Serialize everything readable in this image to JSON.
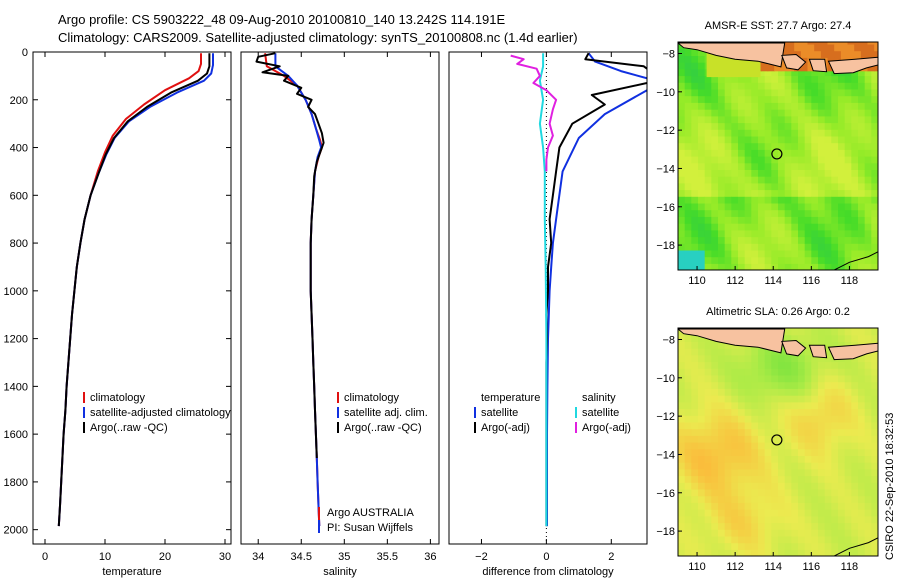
{
  "header": {
    "line1": "Argo profile: CS 5903222_48 09-Aug-2010 20100810_140 13.242S 114.191E",
    "line2": "Climatology: CARS2009. Satellite-adjusted climatology: synTS_20100808.nc (1.4d earlier)"
  },
  "stamp": "CSIRO 22-Sep-2010 18:32:53",
  "colors": {
    "clim": "#e01010",
    "sat": "#1030e0",
    "argo": "#000000",
    "sat_sal": "#20d8e0",
    "argo_sal": "#e020e0"
  },
  "chart_data": [
    {
      "type": "line",
      "id": "temperature",
      "xlabel": "temperature",
      "ylabel": "",
      "xlim": [
        -2,
        31
      ],
      "ylim": [
        2060,
        0
      ],
      "xticks": [
        0,
        10,
        20,
        30
      ],
      "yticks": [
        0,
        200,
        400,
        600,
        800,
        1000,
        1200,
        1400,
        1600,
        1800,
        2000
      ],
      "series": [
        {
          "name": "climatology",
          "color": "clim",
          "points": [
            [
              26.0,
              5
            ],
            [
              26.0,
              50
            ],
            [
              25.6,
              80
            ],
            [
              24.0,
              110
            ],
            [
              20.0,
              160
            ],
            [
              16.5,
              220
            ],
            [
              13.5,
              280
            ],
            [
              11.3,
              350
            ],
            [
              10.0,
              420
            ],
            [
              8.8,
              500
            ],
            [
              7.6,
              600
            ],
            [
              6.6,
              700
            ],
            [
              5.9,
              800
            ],
            [
              5.3,
              900
            ],
            [
              4.9,
              1000
            ],
            [
              4.5,
              1100
            ],
            [
              4.2,
              1200
            ],
            [
              3.9,
              1300
            ],
            [
              3.6,
              1400
            ],
            [
              3.4,
              1500
            ],
            [
              3.1,
              1600
            ],
            [
              2.9,
              1700
            ],
            [
              2.7,
              1800
            ],
            [
              2.5,
              1900
            ],
            [
              2.3,
              1985
            ]
          ]
        },
        {
          "name": "satellite-adjusted climatology",
          "color": "sat",
          "points": [
            [
              28.0,
              5
            ],
            [
              28.0,
              55
            ],
            [
              27.7,
              90
            ],
            [
              26.5,
              120
            ],
            [
              22.0,
              170
            ],
            [
              17.5,
              230
            ],
            [
              14.0,
              290
            ],
            [
              11.6,
              360
            ],
            [
              10.2,
              430
            ],
            [
              8.9,
              510
            ],
            [
              7.6,
              600
            ],
            [
              6.6,
              700
            ],
            [
              5.9,
              800
            ],
            [
              5.3,
              900
            ],
            [
              4.9,
              1000
            ],
            [
              4.5,
              1100
            ],
            [
              4.2,
              1200
            ],
            [
              3.9,
              1300
            ],
            [
              3.6,
              1400
            ],
            [
              3.4,
              1500
            ],
            [
              3.1,
              1600
            ],
            [
              2.9,
              1700
            ],
            [
              2.7,
              1800
            ],
            [
              2.5,
              1900
            ],
            [
              2.3,
              1985
            ]
          ]
        },
        {
          "name": "Argo(..raw -QC)",
          "color": "argo",
          "points": [
            [
              27.4,
              5
            ],
            [
              27.4,
              60
            ],
            [
              27.0,
              90
            ],
            [
              25.5,
              120
            ],
            [
              21.0,
              170
            ],
            [
              17.0,
              230
            ],
            [
              13.8,
              290
            ],
            [
              11.5,
              360
            ],
            [
              10.1,
              430
            ],
            [
              8.9,
              510
            ],
            [
              7.6,
              600
            ],
            [
              6.6,
              700
            ],
            [
              5.9,
              800
            ],
            [
              5.3,
              900
            ],
            [
              4.9,
              1000
            ],
            [
              4.5,
              1100
            ],
            [
              4.2,
              1200
            ],
            [
              3.9,
              1300
            ],
            [
              3.6,
              1400
            ],
            [
              3.4,
              1500
            ],
            [
              3.1,
              1600
            ],
            [
              2.9,
              1700
            ],
            [
              2.7,
              1800
            ],
            [
              2.5,
              1900
            ],
            [
              2.3,
              1985
            ]
          ]
        }
      ],
      "legend": {
        "placement": "lower-left",
        "entries": [
          "climatology",
          "satellite-adjusted climatology",
          "Argo(..raw -QC)"
        ]
      }
    },
    {
      "type": "line",
      "id": "salinity",
      "xlabel": "salinity",
      "ylabel": "",
      "xlim": [
        33.8,
        36.1
      ],
      "ylim": [
        2060,
        0
      ],
      "xticks": [
        34,
        34.5,
        35,
        35.5,
        36
      ],
      "xticklabels": [
        "34",
        "34.5",
        "35",
        "35.5",
        "36"
      ],
      "series": [
        {
          "name": "climatology",
          "color": "clim",
          "points": [
            [
              34.08,
              5
            ],
            [
              34.1,
              60
            ],
            [
              34.3,
              100
            ],
            [
              34.45,
              140
            ],
            [
              34.55,
              200
            ],
            [
              34.62,
              260
            ],
            [
              34.67,
              320
            ],
            [
              34.72,
              370
            ],
            [
              34.74,
              400
            ],
            [
              34.7,
              440
            ],
            [
              34.66,
              500
            ],
            [
              34.64,
              600
            ],
            [
              34.62,
              700
            ],
            [
              34.61,
              800
            ],
            [
              34.61,
              900
            ],
            [
              34.61,
              1000
            ],
            [
              34.62,
              1100
            ],
            [
              34.63,
              1200
            ],
            [
              34.64,
              1300
            ],
            [
              34.65,
              1400
            ],
            [
              34.66,
              1500
            ],
            [
              34.67,
              1600
            ],
            [
              34.68,
              1700
            ],
            [
              34.69,
              1800
            ],
            [
              34.7,
              1900
            ],
            [
              34.71,
              1985
            ]
          ]
        },
        {
          "name": "satellite adj. clim.",
          "color": "sat",
          "points": [
            [
              34.2,
              5
            ],
            [
              34.2,
              60
            ],
            [
              34.35,
              100
            ],
            [
              34.45,
              140
            ],
            [
              34.55,
              200
            ],
            [
              34.62,
              260
            ],
            [
              34.67,
              320
            ],
            [
              34.71,
              370
            ],
            [
              34.73,
              400
            ],
            [
              34.69,
              440
            ],
            [
              34.66,
              500
            ],
            [
              34.64,
              600
            ],
            [
              34.62,
              700
            ],
            [
              34.61,
              800
            ],
            [
              34.61,
              900
            ],
            [
              34.61,
              1000
            ],
            [
              34.62,
              1100
            ],
            [
              34.63,
              1200
            ],
            [
              34.64,
              1300
            ],
            [
              34.65,
              1400
            ],
            [
              34.66,
              1500
            ],
            [
              34.67,
              1600
            ],
            [
              34.68,
              1700
            ],
            [
              34.69,
              1800
            ],
            [
              34.7,
              1900
            ],
            [
              34.71,
              1985
            ]
          ]
        },
        {
          "name": "Argo(..raw -QC)",
          "color": "argo",
          "points": [
            [
              34.2,
              5
            ],
            [
              34.0,
              20
            ],
            [
              33.98,
              40
            ],
            [
              34.25,
              60
            ],
            [
              34.05,
              85
            ],
            [
              34.35,
              100
            ],
            [
              34.3,
              120
            ],
            [
              34.5,
              150
            ],
            [
              34.45,
              175
            ],
            [
              34.62,
              200
            ],
            [
              34.58,
              230
            ],
            [
              34.66,
              260
            ],
            [
              34.7,
              300
            ],
            [
              34.74,
              340
            ],
            [
              34.76,
              380
            ],
            [
              34.72,
              420
            ],
            [
              34.68,
              460
            ],
            [
              34.65,
              520
            ],
            [
              34.64,
              600
            ],
            [
              34.62,
              700
            ],
            [
              34.61,
              800
            ],
            [
              34.61,
              900
            ],
            [
              34.61,
              1000
            ],
            [
              34.62,
              1100
            ],
            [
              34.63,
              1200
            ],
            [
              34.64,
              1300
            ],
            [
              34.65,
              1400
            ],
            [
              34.66,
              1500
            ],
            [
              34.67,
              1600
            ],
            [
              34.68,
              1700
            ]
          ]
        }
      ],
      "legend": {
        "placement": "lower-right",
        "entries": [
          "climatology",
          "satellite adj. clim.",
          "Argo(..raw -QC)"
        ]
      },
      "annotation": [
        "Argo AUSTRALIA",
        "PI: Susan Wijffels"
      ]
    },
    {
      "type": "line",
      "id": "difference",
      "xlabel": "difference from climatology",
      "ylabel": "",
      "xlim": [
        -3,
        3.1
      ],
      "ylim": [
        2060,
        0
      ],
      "xticks": [
        -2,
        0,
        2
      ],
      "series": [
        {
          "name": "temperature satellite",
          "color": "sat",
          "points": [
            [
              1.3,
              5
            ],
            [
              1.5,
              40
            ],
            [
              2.3,
              80
            ],
            [
              3.1,
              110
            ]
          ]
        },
        {
          "name": "temperature satellite deep",
          "color": "sat",
          "points": [
            [
              3.1,
              160
            ],
            [
              1.8,
              260
            ],
            [
              1.0,
              360
            ],
            [
              0.5,
              500
            ],
            [
              0.35,
              650
            ],
            [
              0.2,
              800
            ],
            [
              0.15,
              900
            ],
            [
              0.1,
              1000
            ],
            [
              0.05,
              1200
            ],
            [
              0.03,
              1400
            ],
            [
              0.02,
              1600
            ],
            [
              0.02,
              1800
            ],
            [
              0.02,
              1985
            ]
          ]
        },
        {
          "name": "temperature Argo(-adj)",
          "color": "argo",
          "points": [
            [
              1.3,
              5
            ],
            [
              1.2,
              30
            ],
            [
              3.0,
              60
            ],
            [
              3.1,
              70
            ]
          ]
        },
        {
          "name": "temperature Argo(-adj) deep",
          "color": "argo",
          "points": [
            [
              3.1,
              130
            ],
            [
              1.4,
              180
            ],
            [
              1.8,
              220
            ],
            [
              0.8,
              300
            ],
            [
              0.4,
              400
            ],
            [
              0.3,
              500
            ],
            [
              0.2,
              600
            ],
            [
              0.1,
              700
            ],
            [
              0.15,
              800
            ],
            [
              0.05,
              900
            ],
            [
              0.05,
              1000
            ],
            [
              0.0,
              1100
            ],
            [
              0.02,
              1200
            ],
            [
              0.0,
              1300
            ],
            [
              0.0,
              1400
            ],
            [
              0.0,
              1500
            ],
            [
              0.0,
              1600
            ],
            [
              0.0,
              1700
            ],
            [
              0.0,
              1985
            ]
          ]
        },
        {
          "name": "salinity satellite",
          "color": "sat_sal",
          "points": [
            [
              -0.1,
              5
            ],
            [
              -0.1,
              60
            ],
            [
              -0.2,
              120
            ],
            [
              -0.1,
              200
            ],
            [
              -0.2,
              300
            ],
            [
              -0.1,
              400
            ],
            [
              -0.05,
              500
            ],
            [
              -0.05,
              700
            ],
            [
              -0.02,
              900
            ],
            [
              0.0,
              1200
            ],
            [
              0.0,
              1600
            ],
            [
              0.0,
              1985
            ]
          ]
        },
        {
          "name": "salinity Argo(-adj)",
          "color": "argo_sal",
          "points": [
            [
              -1.1,
              15
            ],
            [
              -0.7,
              30
            ],
            [
              -0.9,
              50
            ],
            [
              -0.3,
              70
            ],
            [
              -0.2,
              100
            ],
            [
              -0.4,
              130
            ],
            [
              0.0,
              160
            ],
            [
              0.3,
              200
            ],
            [
              0.2,
              240
            ],
            [
              0.1,
              300
            ],
            [
              0.2,
              350
            ],
            [
              0.05,
              400
            ],
            [
              0.0,
              450
            ],
            [
              0.0,
              500
            ]
          ]
        }
      ],
      "legend": {
        "placement": "lower-center",
        "left_header": "temperature",
        "right_header": "salinity",
        "left": [
          "satellite",
          "Argo(-adj)"
        ],
        "right": [
          "satellite",
          "Argo(-adj)"
        ]
      }
    },
    {
      "type": "heatmap",
      "id": "sst_map",
      "title": "AMSR-E SST: 27.7 Argo: 27.4",
      "xlim": [
        109,
        119.5
      ],
      "ylim": [
        -19.3,
        -7.4
      ],
      "xticks": [
        110,
        112,
        114,
        116,
        118
      ],
      "yticks": [
        -8,
        -10,
        -12,
        -14,
        -16,
        -18
      ],
      "marker": {
        "lon": 114.191,
        "lat": -13.242
      }
    },
    {
      "type": "heatmap",
      "id": "sla_map",
      "title": "Altimetric SLA: 0.26 Argo: 0.2",
      "xlim": [
        109,
        119.5
      ],
      "ylim": [
        -19.3,
        -7.4
      ],
      "xticks": [
        110,
        112,
        114,
        116,
        118
      ],
      "yticks": [
        -8,
        -10,
        -12,
        -14,
        -16,
        -18
      ],
      "marker": {
        "lon": 114.191,
        "lat": -13.242
      }
    }
  ]
}
